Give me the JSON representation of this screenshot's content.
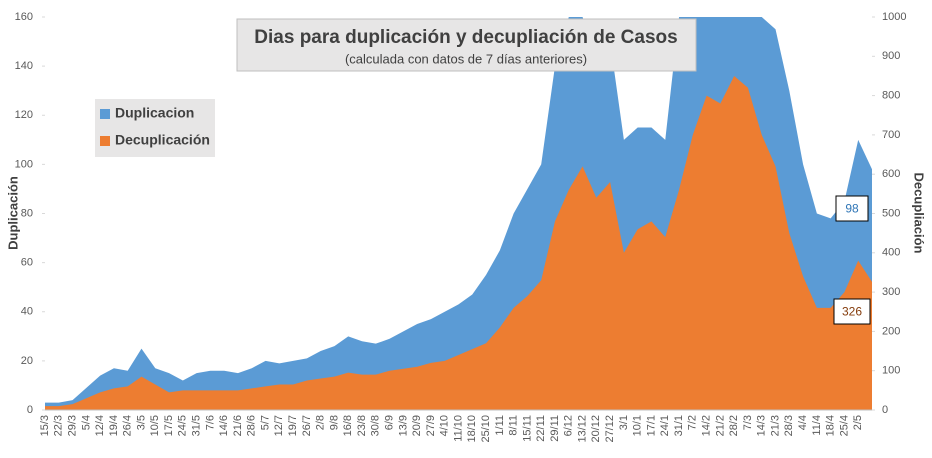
{
  "chart_data": {
    "type": "area",
    "title": "Dias para duplicación y decupliación de Casos",
    "subtitle": "(calculada con datos de 7 días anteriores)",
    "ylabel": "Duplicación",
    "y2label": "Decupliación",
    "categories": [
      "15/3",
      "22/3",
      "29/3",
      "5/4",
      "12/4",
      "19/4",
      "26/4",
      "3/5",
      "10/5",
      "17/5",
      "24/5",
      "31/5",
      "7/6",
      "14/6",
      "21/6",
      "28/6",
      "5/7",
      "12/7",
      "19/7",
      "26/7",
      "2/8",
      "9/8",
      "16/8",
      "23/8",
      "30/8",
      "6/9",
      "13/9",
      "20/9",
      "27/9",
      "4/10",
      "11/10",
      "18/10",
      "25/10",
      "1/11",
      "8/11",
      "15/11",
      "22/11",
      "29/11",
      "6/12",
      "13/12",
      "20/12",
      "27/12",
      "3/1",
      "10/1",
      "17/1",
      "24/1",
      "31/1",
      "7/2",
      "14/2",
      "21/2",
      "28/2",
      "7/3",
      "14/3",
      "21/3",
      "28/3",
      "4/4",
      "11/4",
      "18/4",
      "25/4",
      "2/5",
      null
    ],
    "series": [
      {
        "name": "Duplicacion",
        "color": "#5b9bd5",
        "values": [
          3,
          3,
          4,
          9,
          14,
          17,
          16,
          25,
          17,
          15,
          12,
          15,
          16,
          16,
          15,
          17,
          20,
          19,
          20,
          21,
          24,
          26,
          30,
          28,
          27,
          29,
          32,
          35,
          37,
          40,
          43,
          47,
          55,
          65,
          80,
          90,
          100,
          140,
          160,
          160,
          145,
          150,
          110,
          115,
          115,
          110,
          160,
          160,
          160,
          160,
          160,
          160,
          160,
          155,
          130,
          100,
          80,
          78,
          85,
          110,
          98
        ]
      },
      {
        "name": "Decuplicación",
        "color": "#ed7d31",
        "axis": "y2",
        "values": [
          10,
          10,
          15,
          30,
          45,
          55,
          60,
          85,
          65,
          45,
          50,
          50,
          50,
          50,
          50,
          55,
          60,
          65,
          65,
          75,
          80,
          85,
          95,
          90,
          90,
          100,
          105,
          110,
          120,
          125,
          140,
          155,
          170,
          210,
          260,
          290,
          330,
          480,
          560,
          620,
          540,
          580,
          400,
          460,
          480,
          440,
          560,
          700,
          800,
          780,
          850,
          820,
          700,
          620,
          450,
          340,
          260,
          260,
          300,
          380,
          326
        ]
      }
    ],
    "ylim": [
      0,
      160
    ],
    "yticks": [
      0,
      20,
      40,
      60,
      80,
      100,
      120,
      140,
      160
    ],
    "y2lim": [
      0,
      1000
    ],
    "y2ticks": [
      0,
      100,
      200,
      300,
      400,
      500,
      600,
      700,
      800,
      900,
      1000
    ],
    "legend": "upper left"
  }
}
